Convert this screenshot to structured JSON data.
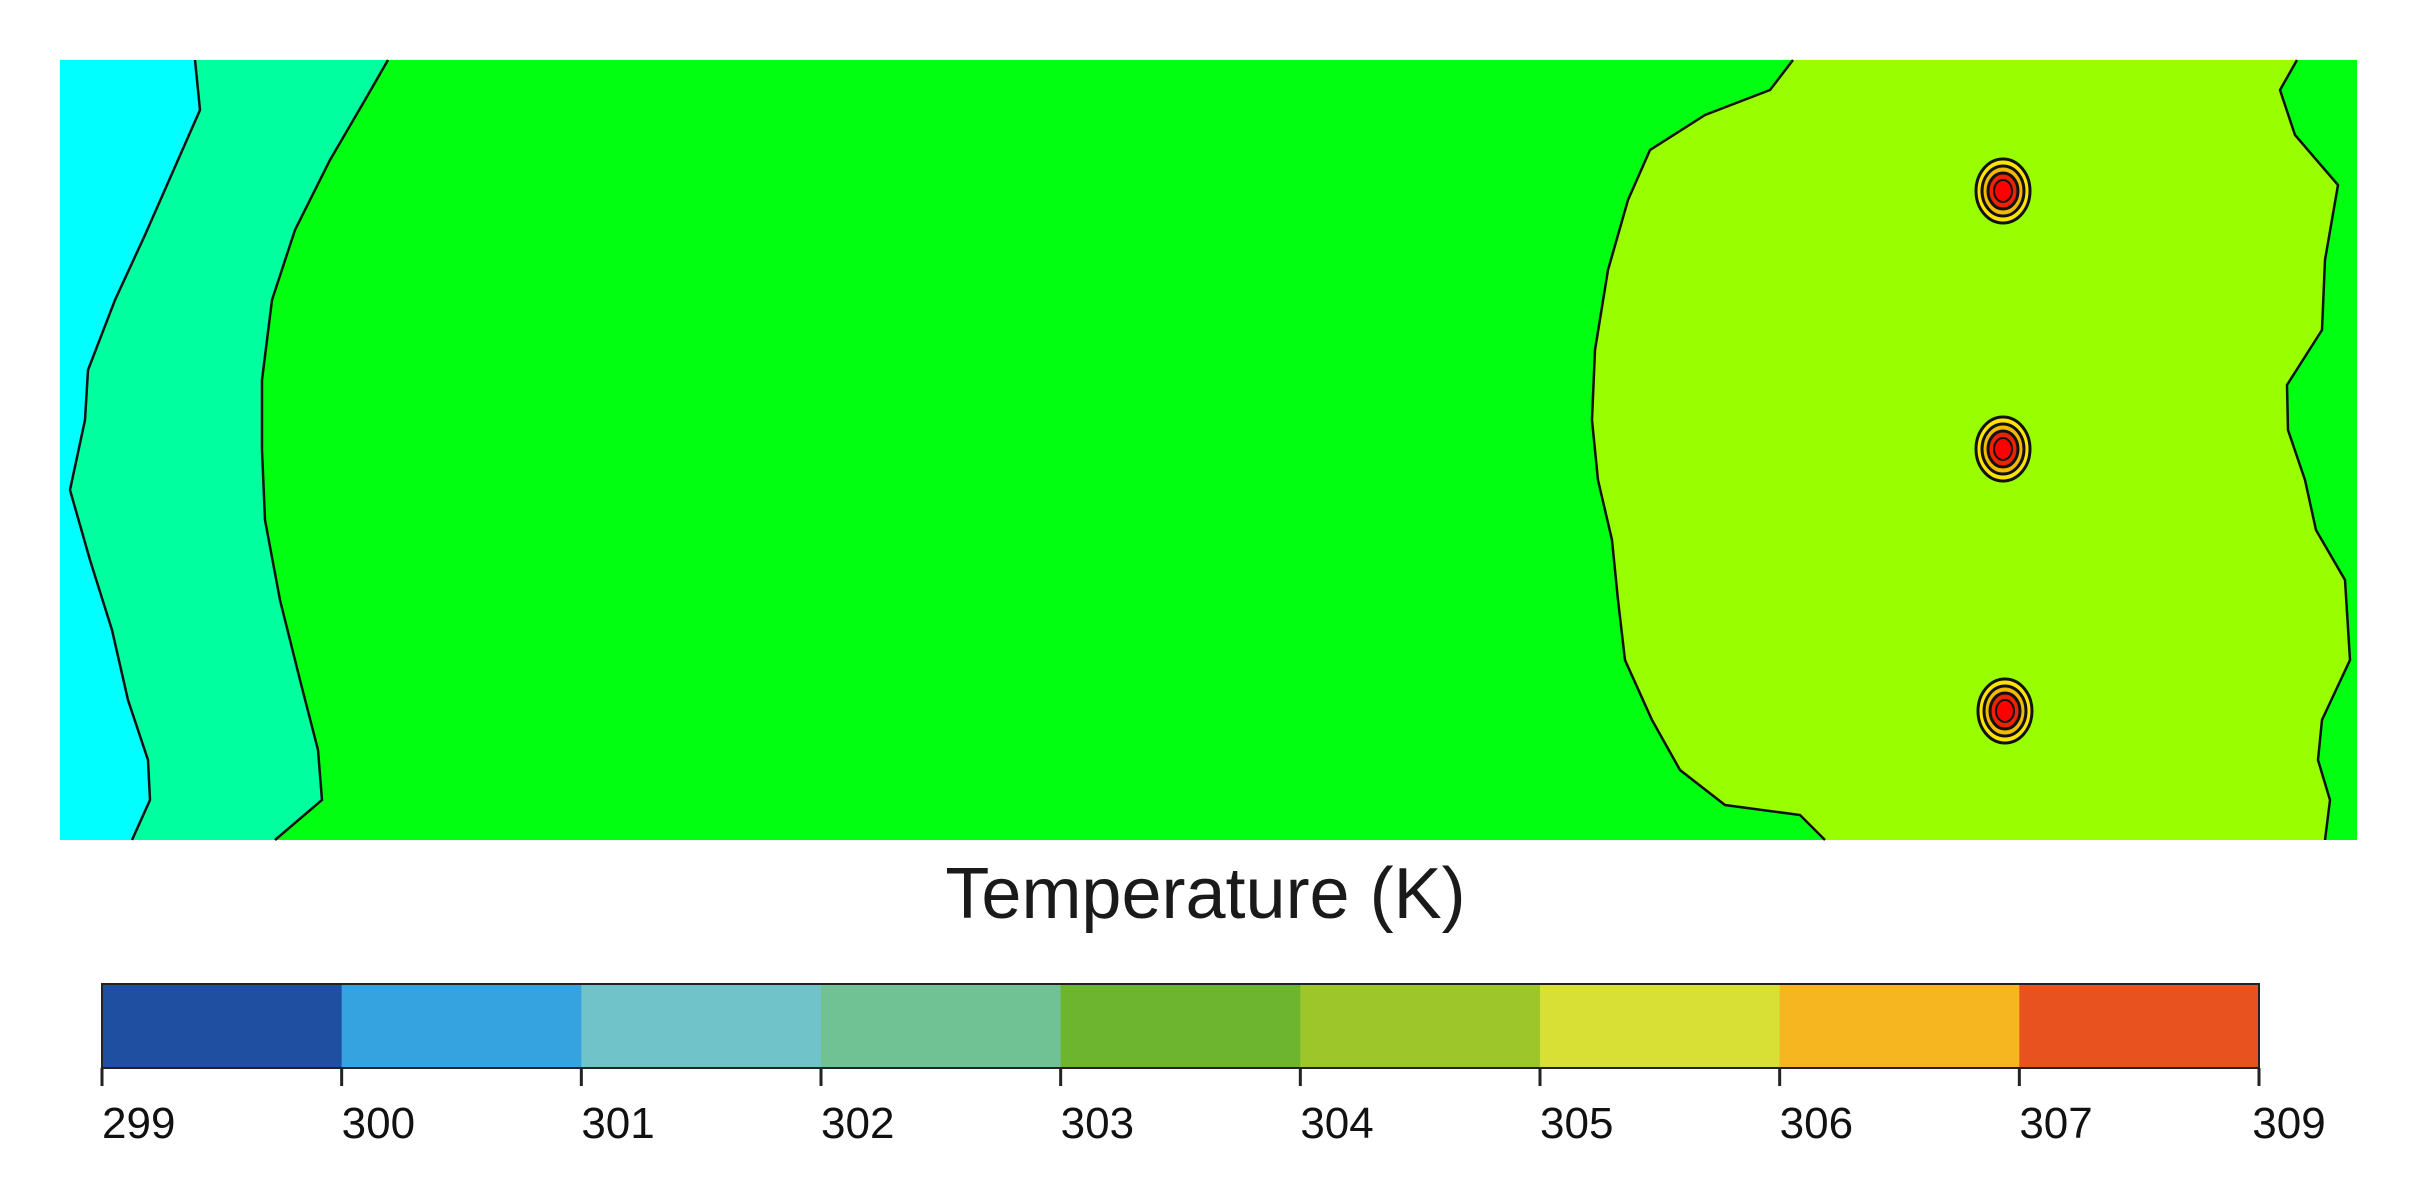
{
  "chart_data": {
    "type": "heatmap",
    "title": "",
    "colorbar": {
      "label": "Temperature (K)",
      "ticks": [
        299,
        300,
        301,
        302,
        303,
        304,
        305,
        306,
        307,
        309
      ],
      "colors": [
        "#1f4fa0",
        "#34a3df",
        "#70c3c8",
        "#70c194",
        "#6db52e",
        "#9dc62b",
        "#d8e036",
        "#f5b61f",
        "#e8521e"
      ]
    },
    "field": {
      "description_levels": [
        {
          "region": "left-edge",
          "band_color": "#00ffff"
        },
        {
          "region": "left-band",
          "band_color": "#00ff9f"
        },
        {
          "region": "center",
          "band_color": "#00ff10"
        },
        {
          "region": "right-zone",
          "band_color": "#99ff00"
        },
        {
          "region": "right-edge",
          "band_color": "#00ff10"
        }
      ],
      "hot_spots": [
        {
          "level": "307-309"
        },
        {
          "level": "307-309"
        },
        {
          "level": "307-309"
        }
      ]
    }
  }
}
